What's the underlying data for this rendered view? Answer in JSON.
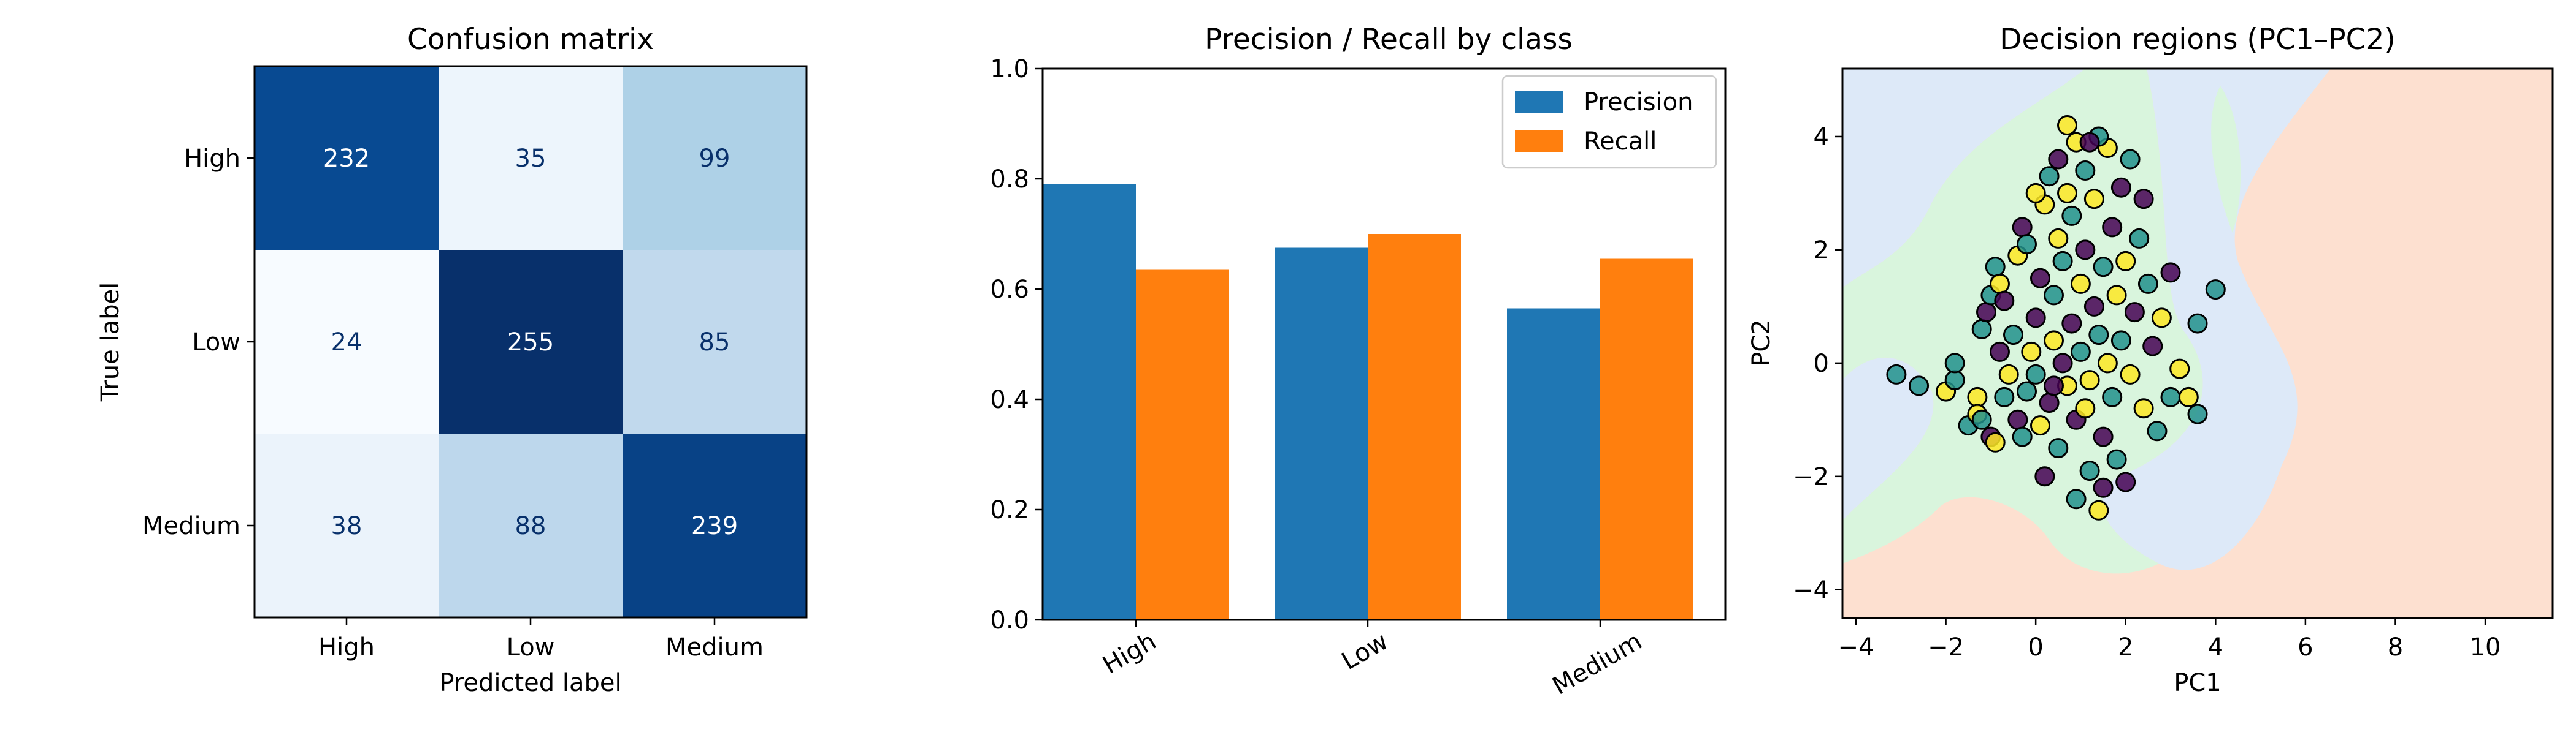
{
  "chart_data": [
    {
      "type": "heatmap",
      "title": "Confusion matrix",
      "xlabel": "Predicted label",
      "ylabel": "True label",
      "x_categories": [
        "High",
        "Low",
        "Medium"
      ],
      "y_categories": [
        "High",
        "Low",
        "Medium"
      ],
      "values": [
        [
          232,
          35,
          99
        ],
        [
          24,
          255,
          85
        ],
        [
          38,
          88,
          239
        ]
      ],
      "colormap": "Blues",
      "grid": false
    },
    {
      "type": "bar",
      "title": "Precision / Recall by class",
      "xlabel": "",
      "ylabel": "",
      "categories": [
        "High",
        "Low",
        "Medium"
      ],
      "series": [
        {
          "name": "Precision",
          "values": [
            0.79,
            0.675,
            0.565
          ],
          "color": "#1f77b4"
        },
        {
          "name": "Recall",
          "values": [
            0.635,
            0.7,
            0.655
          ],
          "color": "#ff7f0e"
        }
      ],
      "ylim": [
        0,
        1.0
      ],
      "yticks": [
        "0.0",
        "0.2",
        "0.4",
        "0.6",
        "0.8",
        "1.0"
      ],
      "legend": "top-right",
      "grid": false
    },
    {
      "type": "scatter",
      "title": "Decision regions (PC1–PC2)",
      "xlabel": "PC1",
      "ylabel": "PC2",
      "xlim": [
        -4.3,
        11.5
      ],
      "ylim": [
        -4.5,
        5.2
      ],
      "xticks": [
        "−4",
        "−2",
        "0",
        "2",
        "4",
        "6",
        "8",
        "10"
      ],
      "yticks": [
        "−4",
        "−2",
        "0",
        "2",
        "4"
      ],
      "region_colors": {
        "High": "#fde0d0",
        "Low": "#dde9f8",
        "Medium": "#d9f5dd"
      },
      "class_colors": {
        "High": "#440154",
        "Low": "#21918c",
        "Medium": "#fde725"
      },
      "points": [
        [
          -3.1,
          -0.2,
          1
        ],
        [
          -2.6,
          -0.4,
          1
        ],
        [
          -2.0,
          -0.5,
          2
        ],
        [
          -1.8,
          -0.3,
          1
        ],
        [
          -1.8,
          0.0,
          1
        ],
        [
          -1.3,
          -0.6,
          2
        ],
        [
          -1.2,
          0.6,
          1
        ],
        [
          -1.5,
          -1.1,
          1
        ],
        [
          -1.3,
          -0.9,
          2
        ],
        [
          -1.0,
          -1.3,
          0
        ],
        [
          -1.2,
          -1.0,
          1
        ],
        [
          -0.9,
          -1.4,
          2
        ],
        [
          -1.1,
          0.9,
          0
        ],
        [
          -1.0,
          1.2,
          1
        ],
        [
          -0.9,
          1.7,
          1
        ],
        [
          -0.8,
          1.4,
          2
        ],
        [
          -0.7,
          1.1,
          0
        ],
        [
          -0.7,
          -0.6,
          1
        ],
        [
          -0.6,
          -0.2,
          2
        ],
        [
          -0.8,
          0.2,
          0
        ],
        [
          -0.5,
          0.5,
          1
        ],
        [
          -0.4,
          -1.0,
          0
        ],
        [
          -0.4,
          1.9,
          2
        ],
        [
          -0.3,
          2.4,
          0
        ],
        [
          -0.2,
          2.1,
          1
        ],
        [
          -0.2,
          -0.5,
          1
        ],
        [
          -0.1,
          0.2,
          2
        ],
        [
          0.0,
          0.8,
          0
        ],
        [
          0.0,
          -0.2,
          1
        ],
        [
          0.1,
          -1.1,
          2
        ],
        [
          0.1,
          1.5,
          0
        ],
        [
          0.2,
          2.8,
          2
        ],
        [
          0.3,
          3.3,
          1
        ],
        [
          0.3,
          -0.7,
          0
        ],
        [
          0.4,
          0.4,
          2
        ],
        [
          0.4,
          1.2,
          1
        ],
        [
          0.5,
          3.6,
          0
        ],
        [
          0.5,
          2.2,
          2
        ],
        [
          0.5,
          -1.5,
          1
        ],
        [
          0.6,
          0.0,
          0
        ],
        [
          0.6,
          1.8,
          1
        ],
        [
          0.7,
          3.0,
          2
        ],
        [
          0.7,
          -0.4,
          2
        ],
        [
          0.8,
          0.7,
          0
        ],
        [
          0.8,
          2.6,
          1
        ],
        [
          0.9,
          3.9,
          2
        ],
        [
          0.9,
          -1.0,
          0
        ],
        [
          1.0,
          1.4,
          2
        ],
        [
          1.0,
          0.2,
          1
        ],
        [
          1.1,
          2.0,
          0
        ],
        [
          1.1,
          3.4,
          1
        ],
        [
          1.2,
          -0.3,
          2
        ],
        [
          1.2,
          -1.9,
          1
        ],
        [
          1.3,
          1.0,
          0
        ],
        [
          1.3,
          2.9,
          2
        ],
        [
          1.4,
          0.5,
          1
        ],
        [
          1.4,
          -2.6,
          2
        ],
        [
          1.5,
          1.7,
          1
        ],
        [
          1.5,
          -1.3,
          0
        ],
        [
          1.6,
          3.8,
          2
        ],
        [
          1.6,
          0.0,
          2
        ],
        [
          1.7,
          2.4,
          0
        ],
        [
          1.7,
          -0.6,
          1
        ],
        [
          1.8,
          1.2,
          2
        ],
        [
          1.8,
          -1.7,
          1
        ],
        [
          1.9,
          3.1,
          0
        ],
        [
          1.9,
          0.4,
          1
        ],
        [
          2.0,
          -2.1,
          0
        ],
        [
          2.0,
          1.8,
          2
        ],
        [
          2.1,
          -0.2,
          2
        ],
        [
          2.1,
          3.6,
          1
        ],
        [
          2.2,
          0.9,
          0
        ],
        [
          2.3,
          2.2,
          1
        ],
        [
          2.4,
          -0.8,
          2
        ],
        [
          2.5,
          1.4,
          1
        ],
        [
          2.6,
          0.3,
          0
        ],
        [
          2.7,
          -1.2,
          1
        ],
        [
          2.8,
          0.8,
          2
        ],
        [
          3.0,
          -0.6,
          1
        ],
        [
          3.0,
          1.6,
          0
        ],
        [
          3.2,
          -0.1,
          2
        ],
        [
          3.4,
          -0.6,
          2
        ],
        [
          3.6,
          -0.9,
          1
        ],
        [
          3.6,
          0.7,
          1
        ],
        [
          4.0,
          1.3,
          1
        ],
        [
          0.2,
          -2.0,
          0
        ],
        [
          0.9,
          -2.4,
          1
        ],
        [
          1.5,
          -2.2,
          0
        ],
        [
          -0.3,
          -1.3,
          1
        ],
        [
          0.4,
          -0.4,
          0
        ],
        [
          1.1,
          -0.8,
          2
        ],
        [
          2.4,
          2.9,
          0
        ],
        [
          0.0,
          3.0,
          2
        ],
        [
          1.4,
          4.0,
          1
        ],
        [
          0.7,
          4.2,
          2
        ],
        [
          1.2,
          3.9,
          0
        ]
      ]
    }
  ]
}
